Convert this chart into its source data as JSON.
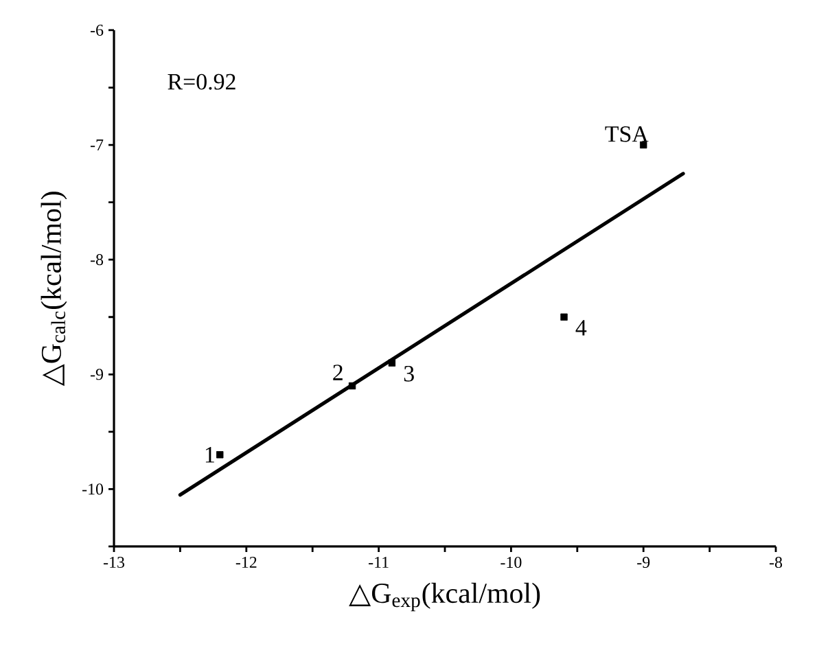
{
  "chart_data": {
    "type": "scatter",
    "xlabel": "△G$_{exp}$(kcal/mol)",
    "ylabel": "△G$_{calc}$(kcal/mol)",
    "xlim": [
      -13,
      -8
    ],
    "ylim": [
      -10.5,
      -6
    ],
    "xticks": [
      -13,
      {
        "value": -12.5,
        "label": null
      },
      -12,
      {
        "value": -11.5,
        "label": null
      },
      -11,
      {
        "value": -10.5,
        "label": null
      },
      -10,
      {
        "value": -9.5,
        "label": null
      },
      -9,
      {
        "value": -8.5,
        "label": null
      },
      -8
    ],
    "yticks": [
      {
        "value": -10.5,
        "label": null
      },
      -10,
      {
        "value": -9.5,
        "label": null
      },
      -9,
      {
        "value": -8.5,
        "label": null
      },
      -8,
      {
        "value": -7.5,
        "label": null
      },
      -7,
      {
        "value": -6.5,
        "label": null
      },
      -6
    ],
    "series": [
      {
        "color": "#000000",
        "marker": "square",
        "x": [
          -12.2,
          -11.2,
          -10.9,
          -9.6,
          -9.0
        ],
        "values": [
          -9.7,
          -9.1,
          -8.9,
          -8.5,
          -7.0
        ]
      },
      {
        "type": "line",
        "color": "#000000",
        "marker": "none",
        "x": [
          -12.5,
          -8.7
        ],
        "values": [
          -10.05,
          -7.25
        ]
      }
    ],
    "annotations": [
      "R=0.92",
      {
        "text": "1",
        "x": -12.2,
        "y": -9.7
      },
      {
        "text": "2",
        "x": -11.2,
        "y": -9.1
      },
      {
        "text": "3",
        "x": -10.9,
        "y": -8.9
      },
      {
        "text": "4",
        "x": -9.6,
        "y": -8.5
      },
      {
        "text": "TSA",
        "x": -9.0,
        "y": -7.0
      }
    ]
  }
}
